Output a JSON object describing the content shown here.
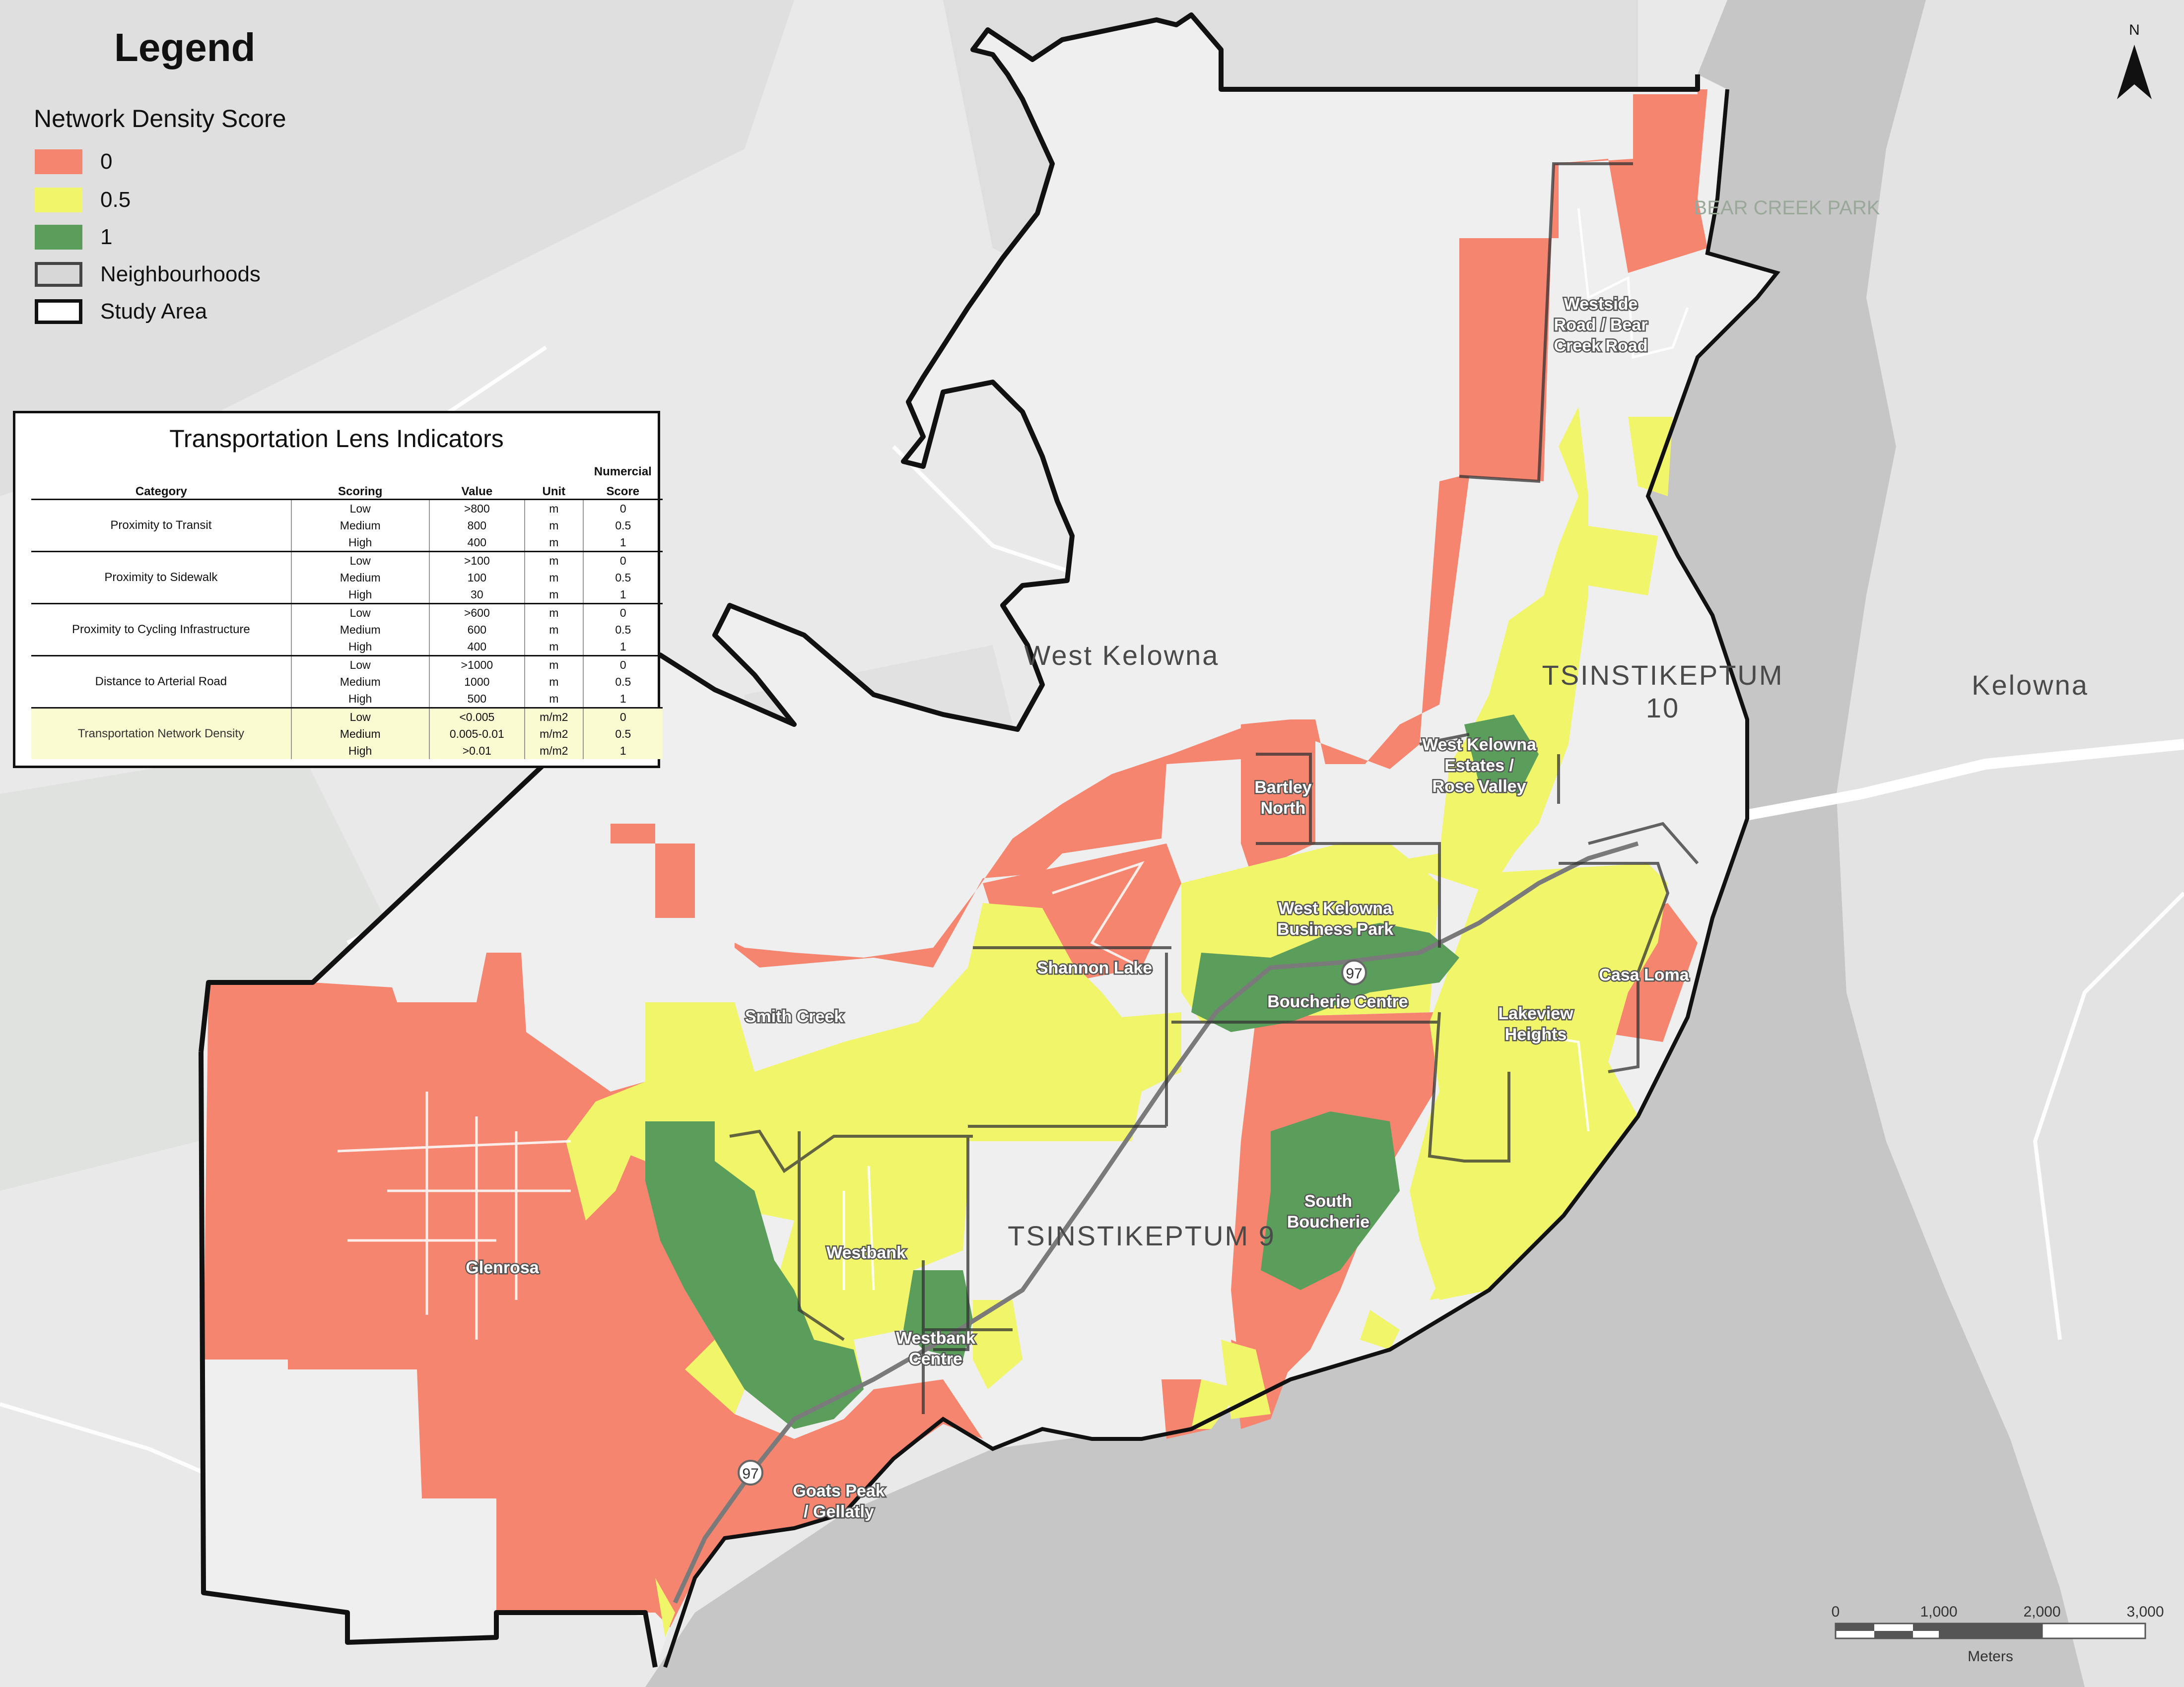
{
  "legend": {
    "title": "Legend",
    "subtitle": "Network Density Score",
    "items": [
      {
        "label": "0",
        "color": "#f5856f"
      },
      {
        "label": "0.5",
        "color": "#f0f56a"
      },
      {
        "label": "1",
        "color": "#5b9e5b"
      },
      {
        "label": "Neighbourhoods",
        "color": "#d7d7d7"
      },
      {
        "label": "Study Area",
        "color": "#ffffff"
      }
    ]
  },
  "indicators": {
    "title": "Transportation Lens Indicators",
    "headers": {
      "category": "Category",
      "scoring": "Scoring",
      "value": "Value",
      "unit": "Unit",
      "score_line1": "Numercial",
      "score_line2": "Score"
    },
    "rows": [
      {
        "category": "Proximity to Transit",
        "levels": [
          {
            "scoring": "Low",
            "value": ">800",
            "unit": "m",
            "score": "0"
          },
          {
            "scoring": "Medium",
            "value": "800",
            "unit": "m",
            "score": "0.5"
          },
          {
            "scoring": "High",
            "value": "400",
            "unit": "m",
            "score": "1"
          }
        ]
      },
      {
        "category": "Proximity to Sidewalk",
        "levels": [
          {
            "scoring": "Low",
            "value": ">100",
            "unit": "m",
            "score": "0"
          },
          {
            "scoring": "Medium",
            "value": "100",
            "unit": "m",
            "score": "0.5"
          },
          {
            "scoring": "High",
            "value": "30",
            "unit": "m",
            "score": "1"
          }
        ]
      },
      {
        "category": "Proximity to Cycling Infrastructure",
        "levels": [
          {
            "scoring": "Low",
            "value": ">600",
            "unit": "m",
            "score": "0"
          },
          {
            "scoring": "Medium",
            "value": "600",
            "unit": "m",
            "score": "0.5"
          },
          {
            "scoring": "High",
            "value": "400",
            "unit": "m",
            "score": "1"
          }
        ]
      },
      {
        "category": "Distance to Arterial Road",
        "levels": [
          {
            "scoring": "Low",
            "value": ">1000",
            "unit": "m",
            "score": "0"
          },
          {
            "scoring": "Medium",
            "value": "1000",
            "unit": "m",
            "score": "0.5"
          },
          {
            "scoring": "High",
            "value": "500",
            "unit": "m",
            "score": "1"
          }
        ]
      },
      {
        "category": "Transportation Network Density",
        "levels": [
          {
            "scoring": "Low",
            "value": "<0.005",
            "unit": "m/m2",
            "score": "0"
          },
          {
            "scoring": "Medium",
            "value": "0.005-0.01",
            "unit": "m/m2",
            "score": "0.5"
          },
          {
            "scoring": "High",
            "value": ">0.01",
            "unit": "m/m2",
            "score": "1"
          }
        ]
      }
    ]
  },
  "map": {
    "neighbourhoods": {
      "westside": [
        "Westside",
        "Road / Bear",
        "Creek Road"
      ],
      "bartley": [
        "Bartley",
        "North"
      ],
      "estates": [
        "West Kelowna",
        "Estates /",
        "Rose Valley"
      ],
      "business": [
        "West Kelowna",
        "Business Park"
      ],
      "shannon": [
        "Shannon Lake"
      ],
      "smith": [
        "Smith Creek"
      ],
      "boucherie_centre": [
        "Boucherie Centre"
      ],
      "casa": [
        "Casa Loma"
      ],
      "lakeview": [
        "Lakeview",
        "Heights"
      ],
      "south_boucherie": [
        "South",
        "Boucherie"
      ],
      "glenrosa": [
        "Glenrosa"
      ],
      "westbank": [
        "Westbank"
      ],
      "westbank_centre": [
        "Westbank",
        "Centre"
      ],
      "goats": [
        "Goats Peak",
        "/ Gellatly"
      ]
    },
    "places": {
      "west_kelowna": "West Kelowna",
      "tsin10": [
        "TSINSTIKEPTUM",
        "10"
      ],
      "tsin9": "TSINSTIKEPTUM 9",
      "kelowna": "Kelowna",
      "bear_creek": "BEAR CREEK PARK",
      "hwy": "97"
    }
  },
  "north": {
    "label": "N"
  },
  "scale": {
    "ticks": [
      "0",
      "1,000",
      "2,000",
      "3,000"
    ],
    "unit": "Meters"
  }
}
